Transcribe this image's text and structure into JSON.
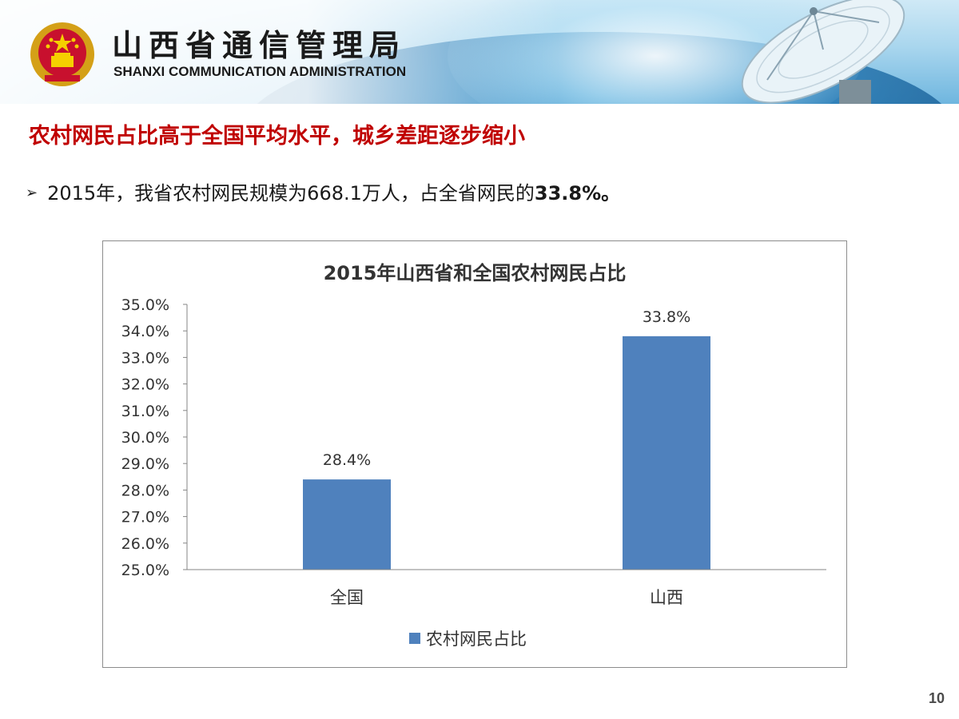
{
  "header": {
    "org_name": "山西省通信管理局",
    "org_name_en": "SHANXI COMMUNICATION ADMINISTRATION",
    "emblem_icon": "national-emblem-icon",
    "dish_icon": "satellite-dish-icon"
  },
  "slide": {
    "title": "农村网民占比高于全国平均水平，城乡差距逐步缩小",
    "bullet_prefix": "2015年，我省农村网民规模为668.1万人，占全省网民的",
    "bullet_highlight": "33.8%。",
    "page_number": "10"
  },
  "colors": {
    "title_red": "#c00000",
    "bar_blue": "#4f81bd"
  },
  "chart_data": {
    "type": "bar",
    "title": "2015年山西省和全国农村网民占比",
    "categories": [
      "全国",
      "山西"
    ],
    "series": [
      {
        "name": "农村网民占比",
        "values": [
          28.4,
          33.8
        ]
      }
    ],
    "data_labels": [
      "28.4%",
      "33.8%"
    ],
    "y_ticks": [
      "25.0%",
      "26.0%",
      "27.0%",
      "28.0%",
      "29.0%",
      "30.0%",
      "31.0%",
      "32.0%",
      "33.0%",
      "34.0%",
      "35.0%"
    ],
    "ylim": [
      25,
      35
    ],
    "xlabel": "",
    "ylabel": "",
    "grid": false,
    "legend": "bottom"
  }
}
